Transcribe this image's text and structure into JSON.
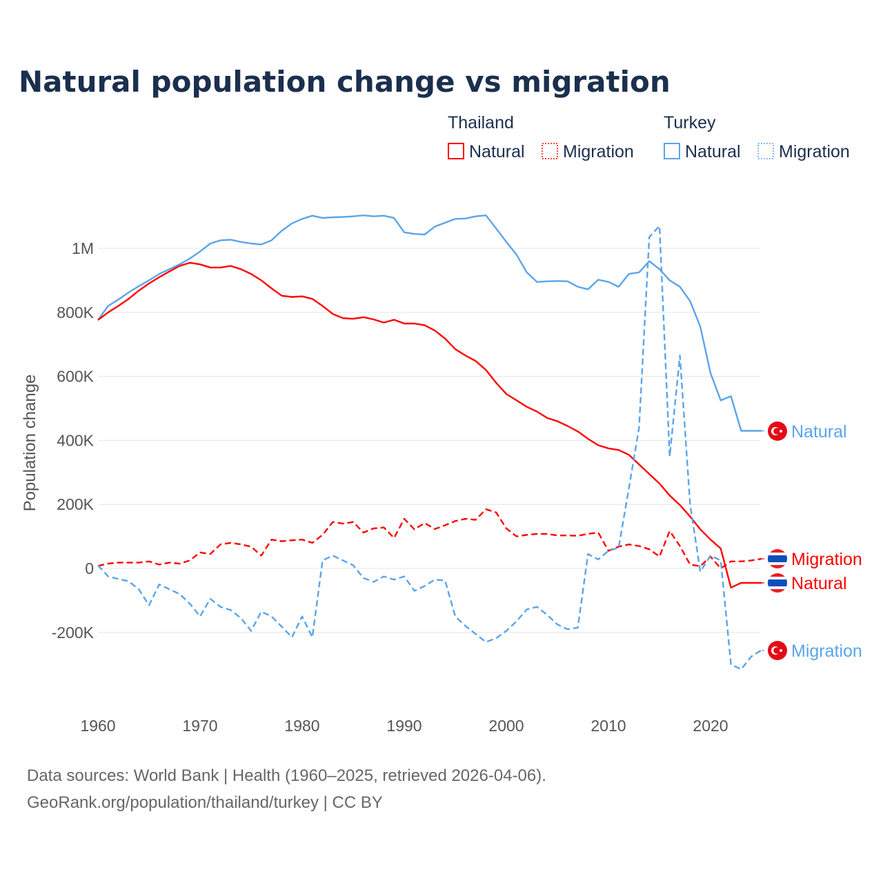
{
  "chart_data": {
    "type": "line",
    "title": "Natural population change vs migration",
    "ylabel": "Population change",
    "xlabel": "",
    "xlim": [
      1960,
      2025
    ],
    "ylim": [
      -400000,
      1150000
    ],
    "grid": true,
    "x_ticks": [
      {
        "value": 1960,
        "label": "1960"
      },
      {
        "value": 1970,
        "label": "1970"
      },
      {
        "value": 1980,
        "label": "1980"
      },
      {
        "value": 1990,
        "label": "1990"
      },
      {
        "value": 2000,
        "label": "2000"
      },
      {
        "value": 2010,
        "label": "2010"
      },
      {
        "value": 2020,
        "label": "2020"
      }
    ],
    "y_ticks": [
      {
        "value": -200000,
        "label": "-200K"
      },
      {
        "value": 0,
        "label": "0"
      },
      {
        "value": 200000,
        "label": "200K"
      },
      {
        "value": 400000,
        "label": "400K"
      },
      {
        "value": 600000,
        "label": "600K"
      },
      {
        "value": 800000,
        "label": "800K"
      },
      {
        "value": 1000000,
        "label": "1M"
      }
    ],
    "legend": {
      "placement": "top-right",
      "groups": [
        {
          "country": "Thailand",
          "items": [
            "Natural",
            "Migration"
          ]
        },
        {
          "country": "Turkey",
          "items": [
            "Natural",
            "Migration"
          ]
        }
      ]
    },
    "x_start": 1960,
    "series": [
      {
        "name": "Turkey Natural",
        "country": "Turkey",
        "kind": "Natural",
        "label": "Natural",
        "color": "#5ba4ea",
        "dash": false,
        "values_k": [
          776,
          820,
          840,
          862,
          882,
          900,
          920,
          935,
          950,
          968,
          990,
          1015,
          1025,
          1027,
          1020,
          1015,
          1012,
          1025,
          1055,
          1078,
          1092,
          1102,
          1095,
          1097,
          1098,
          1100,
          1103,
          1100,
          1102,
          1095,
          1050,
          1045,
          1043,
          1068,
          1080,
          1092,
          1093,
          1100,
          1103,
          1062,
          1020,
          980,
          925,
          895,
          897,
          898,
          897,
          880,
          872,
          902,
          895,
          880,
          920,
          925,
          960,
          935,
          900,
          880,
          835,
          755,
          610,
          525,
          538,
          430,
          430,
          430
        ]
      },
      {
        "name": "Thailand Natural",
        "country": "Thailand",
        "kind": "Natural",
        "label": "Natural",
        "color": "#ff0000",
        "dash": false,
        "values_k": [
          776,
          800,
          820,
          842,
          868,
          890,
          910,
          928,
          945,
          955,
          950,
          940,
          940,
          945,
          935,
          920,
          900,
          875,
          852,
          848,
          850,
          842,
          820,
          795,
          782,
          780,
          785,
          778,
          768,
          777,
          765,
          765,
          760,
          743,
          718,
          685,
          665,
          648,
          620,
          580,
          545,
          525,
          505,
          490,
          470,
          460,
          445,
          428,
          405,
          385,
          375,
          370,
          355,
          325,
          295,
          265,
          228,
          198,
          162,
          122,
          90,
          62,
          -60,
          -45,
          -45,
          -45
        ]
      },
      {
        "name": "Thailand Migration",
        "country": "Thailand",
        "kind": "Migration",
        "label": "Migration",
        "color": "#ff0000",
        "dash": true,
        "values_k": [
          8,
          15,
          18,
          18,
          18,
          22,
          12,
          18,
          15,
          25,
          50,
          45,
          75,
          80,
          75,
          68,
          40,
          90,
          85,
          88,
          90,
          80,
          105,
          145,
          140,
          145,
          112,
          125,
          128,
          95,
          155,
          122,
          142,
          123,
          135,
          148,
          155,
          152,
          185,
          175,
          125,
          100,
          105,
          108,
          108,
          103,
          103,
          102,
          108,
          112,
          55,
          68,
          75,
          70,
          60,
          37,
          117,
          70,
          12,
          7,
          37,
          0,
          22,
          22,
          25,
          30
        ]
      },
      {
        "name": "Turkey Migration",
        "country": "Turkey",
        "kind": "Migration",
        "label": "Migration",
        "color": "#5ba4ea",
        "dash": true,
        "values_k": [
          10,
          -25,
          -33,
          -40,
          -65,
          -115,
          -50,
          -65,
          -80,
          -110,
          -150,
          -95,
          -120,
          -130,
          -155,
          -195,
          -135,
          -150,
          -182,
          -215,
          -150,
          -215,
          25,
          40,
          25,
          10,
          -30,
          -42,
          -25,
          -35,
          -25,
          -70,
          -55,
          -35,
          -38,
          -150,
          -180,
          -205,
          -230,
          -218,
          -195,
          -165,
          -128,
          -120,
          -145,
          -175,
          -190,
          -185,
          45,
          28,
          55,
          65,
          250,
          440,
          1035,
          1070,
          350,
          665,
          200,
          -10,
          40,
          25,
          -300,
          -315,
          -275,
          -255
        ]
      }
    ]
  },
  "footer": {
    "line1": "Data sources: World Bank | Health (1960–2025, retrieved 2026-04-06).",
    "line2": "GeoRank.org/population/thailand/turkey | CC BY"
  }
}
